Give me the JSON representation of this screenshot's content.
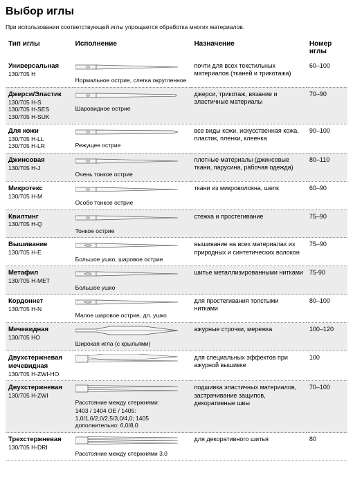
{
  "title": "Выбор иглы",
  "intro": "При использовании соответствующей иглы упрощается обработка многих материалов.",
  "headers": {
    "type": "Тип иглы",
    "exec": "Исполнение",
    "purpose": "Назначение",
    "num": "Номер иглы"
  },
  "rows": [
    {
      "name": "Универсальная",
      "codes": "130/705 H",
      "exec_desc": "Нормальное острие, слегка округленное",
      "purpose": "почти для всех текстильных материалов (тканей и трикотажа)",
      "num": "60–100",
      "needle": "single-normal",
      "zebra": false
    },
    {
      "name": "Джерси/Эластик",
      "codes": "130/705 H-S\n130/705 H-SES\n130/705 H-SUK",
      "exec_desc": "Шаровидное острие",
      "purpose": "джерси, трикотаж, вязание и эластичные материалы",
      "num": "70–90",
      "needle": "single-ball",
      "zebra": true
    },
    {
      "name": "Для кожи",
      "codes": "130/705 H-LL\n130/705 H-LR",
      "exec_desc": "Режущее острие",
      "purpose": "все виды кожи, искусственная кожа, пластик, пленки, клеенка",
      "num": "90–100",
      "needle": "single-cutting",
      "zebra": false
    },
    {
      "name": "Джинсовая",
      "codes": "130/705 H-J",
      "exec_desc": "Очень тонкое острие",
      "purpose": "плотные материалы (джинсовые ткани, парусина, рабочая одежда)",
      "num": "80–110",
      "needle": "single-sharp",
      "zebra": true
    },
    {
      "name": "Микротекс",
      "codes": "130/705 H-M",
      "exec_desc": "Особо тонкое острие",
      "purpose": "ткани из микроволокна, шелк",
      "num": "60–90",
      "needle": "single-sharp",
      "zebra": false
    },
    {
      "name": "Квилтинг",
      "codes": "130/705 H-Q",
      "exec_desc": "Тонкое острие",
      "purpose": "стежка и простегивание",
      "num": "75–90",
      "needle": "single-sharp",
      "zebra": true
    },
    {
      "name": "Вышивание",
      "codes": "130/705 H-E",
      "exec_desc": "Большое ушко, шаровое острие",
      "purpose": "вышивание на всех материалах из природных и синтетических волокон",
      "num": "75–90",
      "needle": "single-bigeye",
      "zebra": false
    },
    {
      "name": "Метафил",
      "codes": "130/705 H-MET",
      "exec_desc": "Большое ушко",
      "purpose": "шитье металлизированными нитками",
      "num": "75-90",
      "needle": "single-bigeye",
      "zebra": true
    },
    {
      "name": "Кордоннет",
      "codes": "130/705 H-N",
      "exec_desc": "Малое шаровое острие, дл. ушко",
      "purpose": "для простегивания толстыми нитками",
      "num": "80–100",
      "needle": "single-bigeye",
      "zebra": false
    },
    {
      "name": "Мечевидная",
      "codes": "130/705 HO",
      "exec_desc": "Широкая игла (с крыльями)",
      "purpose": "ажурные строчки, мережка",
      "num": "100–120",
      "needle": "wing",
      "zebra": true
    },
    {
      "name": "Двухстержневая мечевидная",
      "codes": "130/705 H-ZWI-HO",
      "exec_desc": "",
      "purpose": "для специальных эффектов при ажурной вышивке",
      "num": "100",
      "needle": "twin-wing",
      "zebra": false
    },
    {
      "name": "Двухстержневая",
      "codes": "130/705 H-ZWI",
      "exec_desc": "Расстояние между стержнями:\n1403 / 1404 OE / 1405: 1,0/1,6/2,0/2,5/3,0/4,0; 1405 дополнительно: 6,0/8,0",
      "purpose": "подшивка эластичных материалов, застрачивание защипов, декоративные швы",
      "num": "70–100",
      "needle": "twin",
      "zebra": true
    },
    {
      "name": "Трехстержневая",
      "codes": "130/705 H-DRI",
      "exec_desc": "Расстояние между стержнями 3.0",
      "purpose": "для декоративного шитья",
      "num": "80",
      "needle": "triple",
      "zebra": false
    }
  ],
  "needle_shapes": {
    "stroke": "#555555",
    "fill": "#f5f5f5",
    "width": 150,
    "height": 14
  }
}
